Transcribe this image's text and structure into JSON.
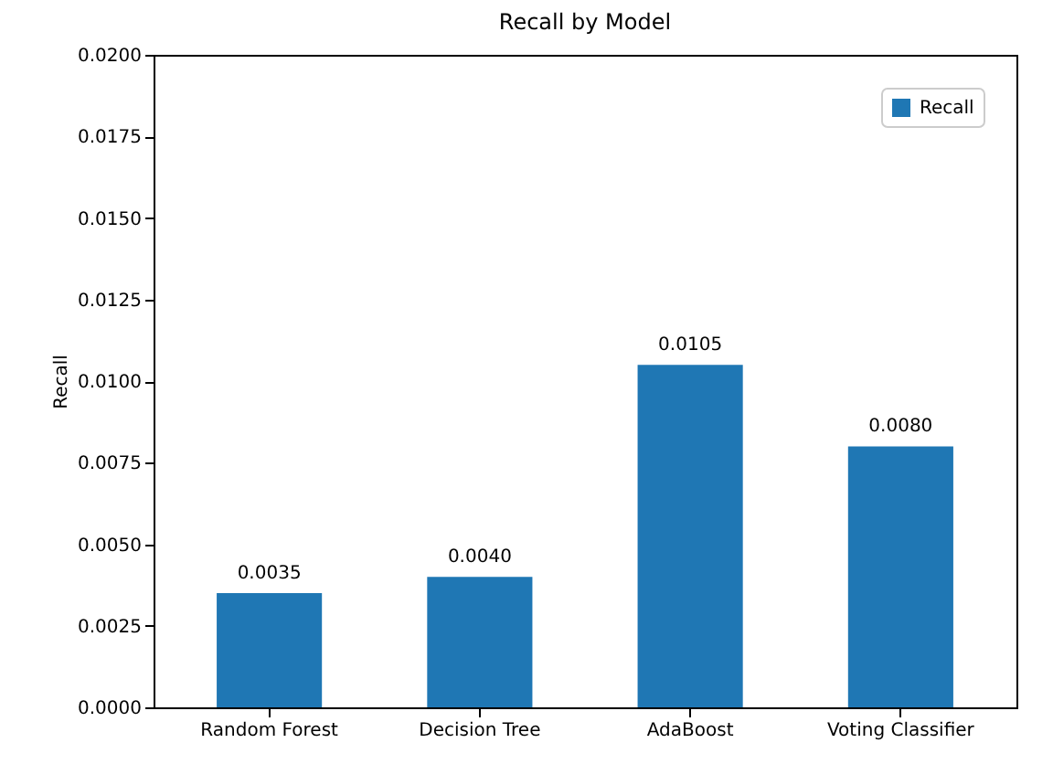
{
  "chart_data": {
    "type": "bar",
    "title": "Recall by Model",
    "ylabel": "Recall",
    "categories": [
      "Random Forest",
      "Decision Tree",
      "AdaBoost",
      "Voting Classifier"
    ],
    "series": [
      {
        "name": "Recall",
        "color": "#1f77b4",
        "values": [
          0.0035,
          0.004,
          0.0105,
          0.008
        ],
        "value_labels": [
          "0.0035",
          "0.0040",
          "0.0105",
          "0.0080"
        ]
      }
    ],
    "ylim": [
      0,
      0.02
    ],
    "yticks": [
      {
        "value": 0,
        "label": "0.0000"
      },
      {
        "value": 0.0025,
        "label": "0.0025"
      },
      {
        "value": 0.005,
        "label": "0.0050"
      },
      {
        "value": 0.0075,
        "label": "0.0075"
      },
      {
        "value": 0.01,
        "label": "0.0100"
      },
      {
        "value": 0.0125,
        "label": "0.0125"
      },
      {
        "value": 0.015,
        "label": "0.0150"
      },
      {
        "value": 0.0175,
        "label": "0.0175"
      },
      {
        "value": 0.02,
        "label": "0.0200"
      }
    ],
    "grid": false,
    "legend": "top right"
  }
}
